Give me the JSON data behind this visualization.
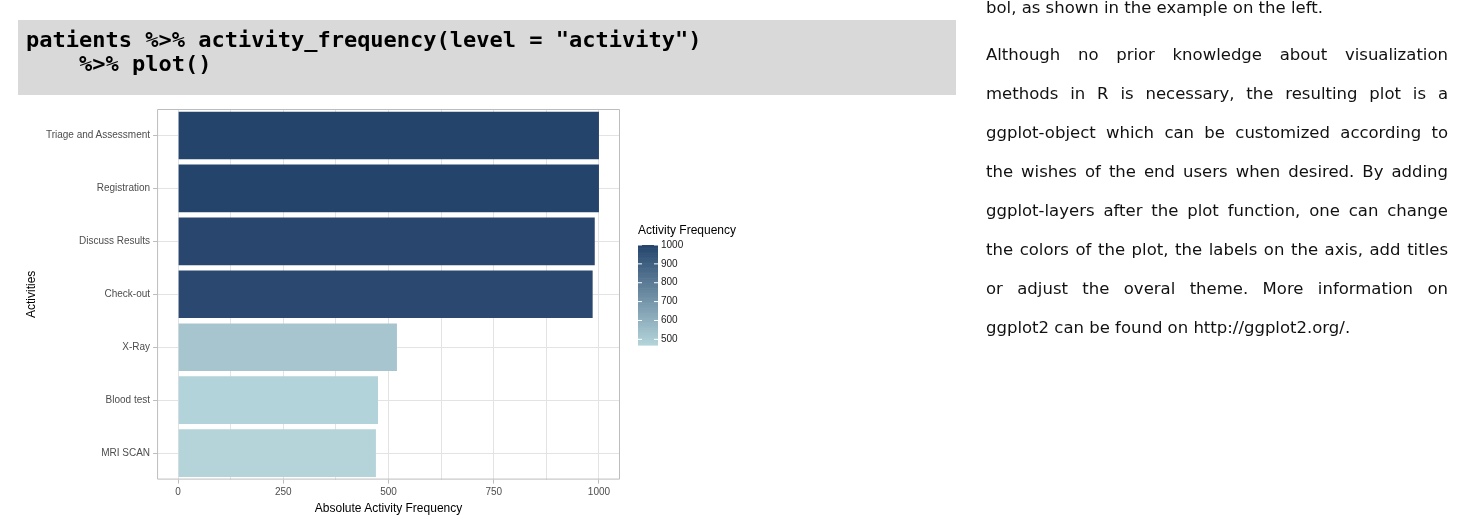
{
  "chart_data": {
    "type": "bar",
    "orientation": "horizontal",
    "title": "patients %>% activity_frequency(level = \"activity\")\n    %>% plot()",
    "categories": [
      "Triage and Assessment",
      "Registration",
      "Discuss Results",
      "Check-out",
      "X-Ray",
      "Blood test",
      "MRI SCAN"
    ],
    "values": [
      1000,
      1000,
      990,
      985,
      520,
      475,
      470
    ],
    "colors": [
      "#24446c",
      "#24446c",
      "#28466e",
      "#2a4870",
      "#a7c5cf",
      "#b3d3da",
      "#b4d4da"
    ],
    "xlim": [
      -50,
      1050
    ],
    "xticks": [
      0,
      {
        "value": 125,
        "label": null
      },
      250,
      {
        "value": 375,
        "label": null
      },
      500,
      {
        "value": 625,
        "label": null
      },
      750,
      {
        "value": 875,
        "label": null
      },
      1000
    ],
    "xlabel": "Absolute Activity Frequency",
    "ylabel": "Activities",
    "clabel": "Activity Frequency",
    "clim": [
      470,
      1000
    ],
    "cticks": [
      500,
      600,
      700,
      800,
      900,
      1000
    ],
    "grid": true,
    "legend": false,
    "annotations": [
      "bol, as shown in the example on the left.",
      "Although no prior knowledge about visualization methods in R is necessary, the resulting plot is a ggplot-object which can be customized according to the wishes of the end users when desired. By adding ggplot-layers after the plot function, one can change the colors of the plot, the labels on the axis, add titles or adjust the overal theme. More information on ggplot2 can be found on http://ggplot2.org/."
    ]
  }
}
